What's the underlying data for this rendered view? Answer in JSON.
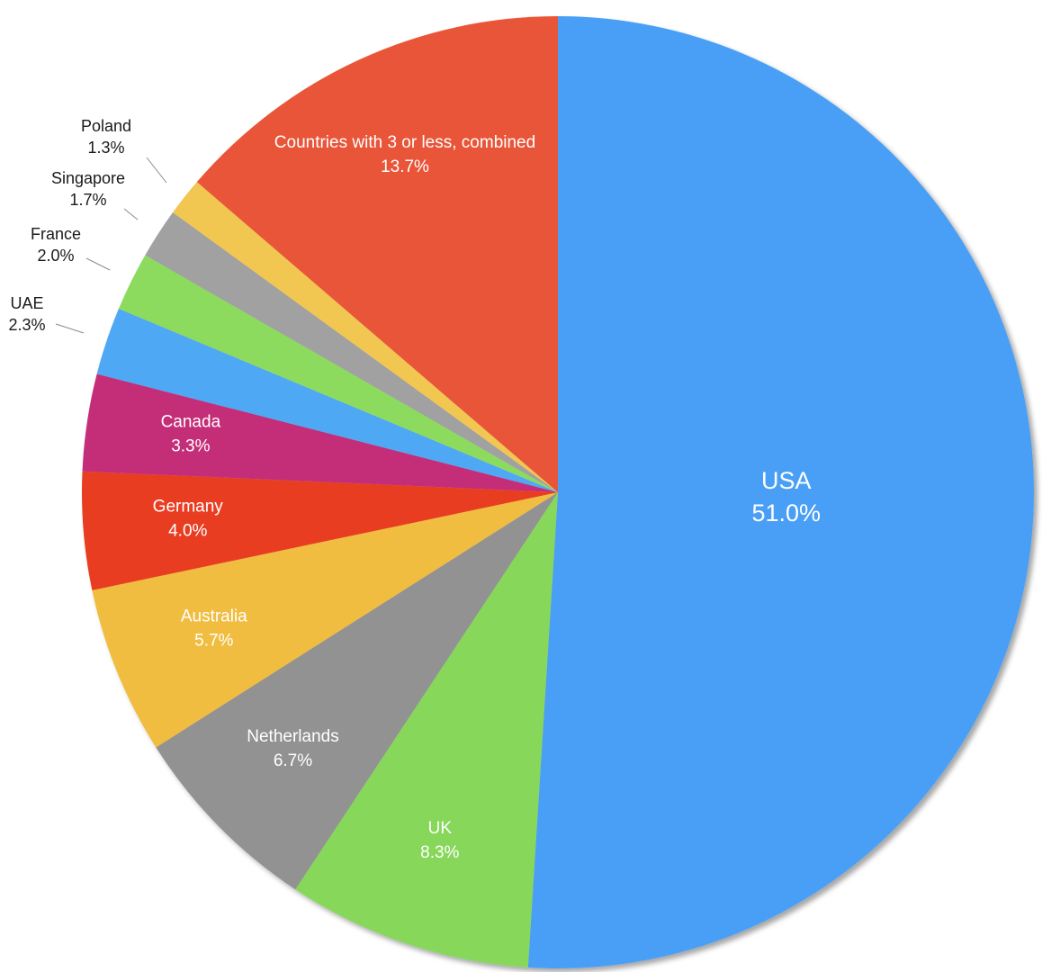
{
  "chart_data": {
    "type": "pie",
    "start_angle_deg": 0,
    "direction": "clockwise",
    "slices": [
      {
        "label": "USA",
        "percent_label": "51.0%",
        "value": 51.0,
        "color": "#4a9ff5"
      },
      {
        "label": "UK",
        "percent_label": "8.3%",
        "value": 8.3,
        "color": "#86d75a"
      },
      {
        "label": "Netherlands",
        "percent_label": "6.7%",
        "value": 6.7,
        "color": "#929292"
      },
      {
        "label": "Australia",
        "percent_label": "5.7%",
        "value": 5.7,
        "color": "#f0bd41"
      },
      {
        "label": "Germany",
        "percent_label": "4.0%",
        "value": 4.0,
        "color": "#e93e24"
      },
      {
        "label": "Canada",
        "percent_label": "3.3%",
        "value": 3.3,
        "color": "#c42f78"
      },
      {
        "label": "UAE",
        "percent_label": "2.3%",
        "value": 2.3,
        "color": "#4fa8f4"
      },
      {
        "label": "France",
        "percent_label": "2.0%",
        "value": 2.0,
        "color": "#8cdb5f"
      },
      {
        "label": "Singapore",
        "percent_label": "1.7%",
        "value": 1.7,
        "color": "#a1a1a1"
      },
      {
        "label": "Poland",
        "percent_label": "1.3%",
        "value": 1.3,
        "color": "#f1c651"
      },
      {
        "label": "Countries with 3 or less, combined",
        "percent_label": "13.7%",
        "value": 13.7,
        "color": "#e95537"
      }
    ]
  }
}
